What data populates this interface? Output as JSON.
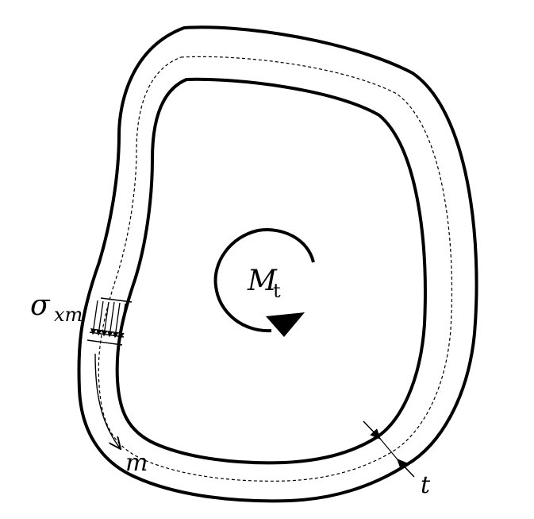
{
  "diagram": {
    "description_free": true,
    "labels": {
      "stress_symbol": "σ",
      "stress_subscript": "xm",
      "moment_symbol": "M",
      "moment_subscript": "t",
      "centerline_coord": "m",
      "thickness": "t"
    },
    "colors": {
      "stroke": "#000000",
      "background": "#ffffff"
    }
  }
}
